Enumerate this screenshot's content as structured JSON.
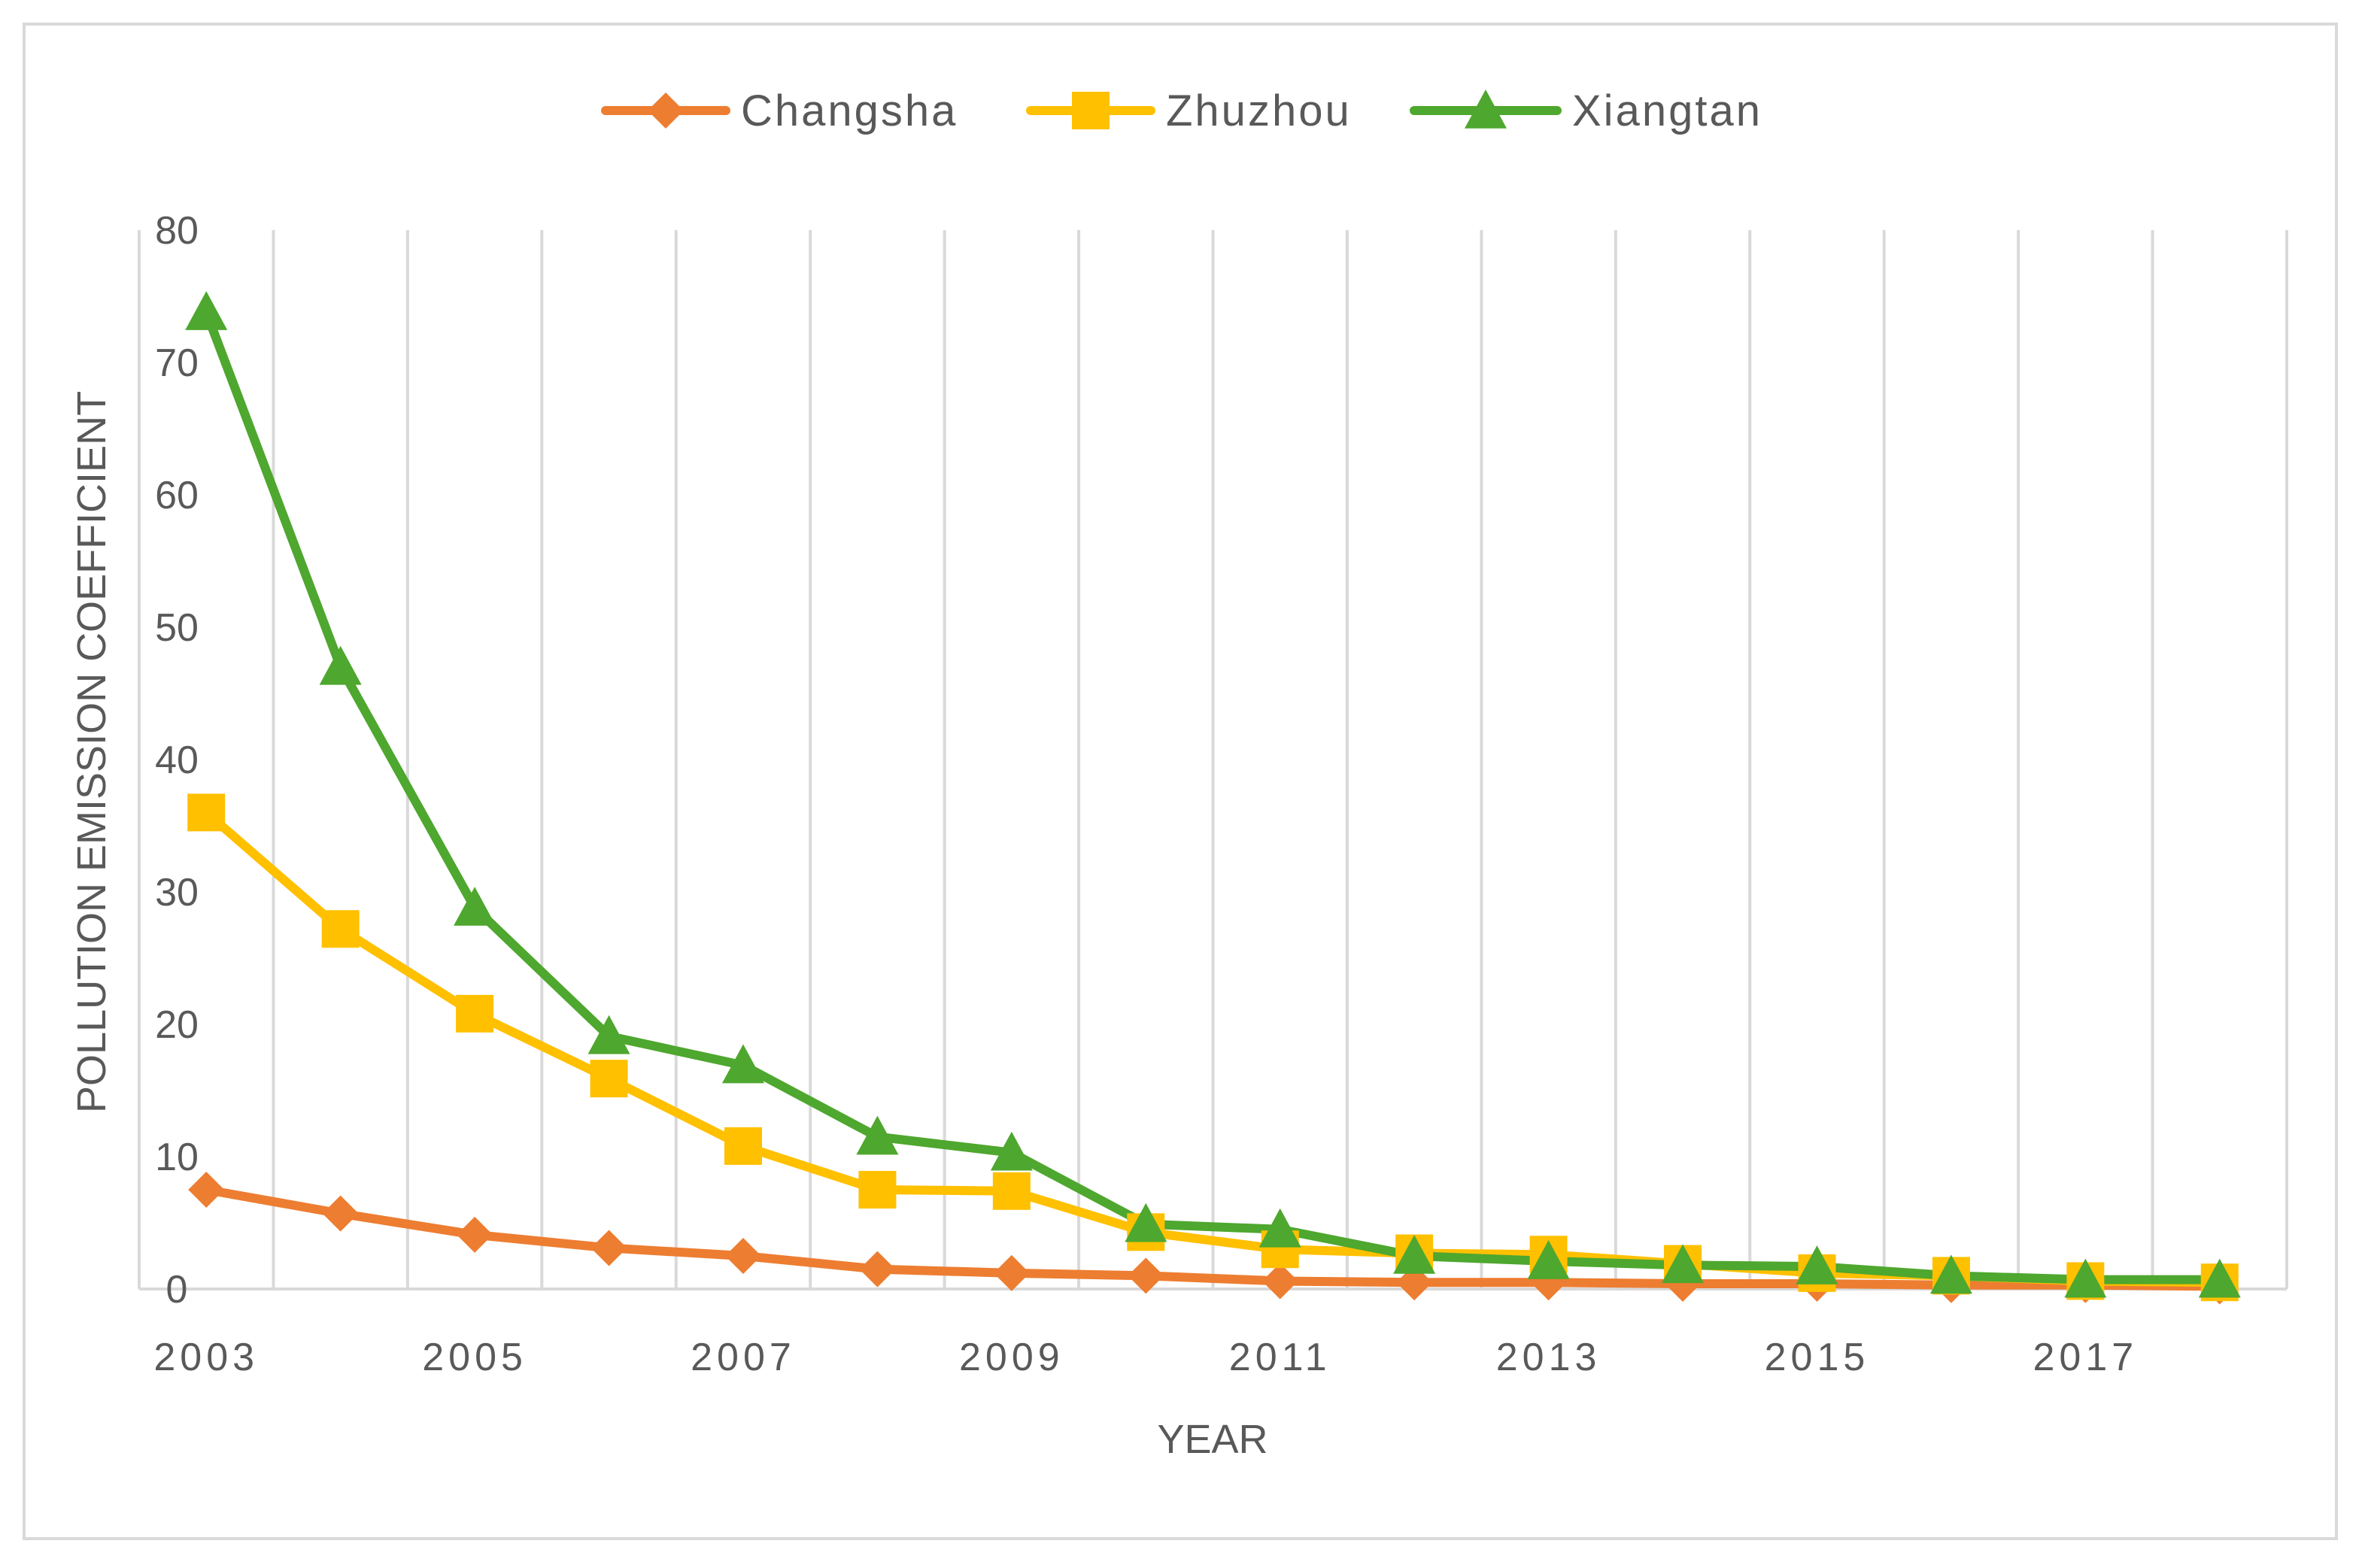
{
  "chart_data": {
    "type": "line",
    "x": [
      2003,
      2004,
      2005,
      2006,
      2007,
      2008,
      2009,
      2010,
      2011,
      2012,
      2013,
      2014,
      2015,
      2016,
      2017,
      2018
    ],
    "x_tick_labels": [
      "2003",
      "2005",
      "2007",
      "2009",
      "2011",
      "2013",
      "2015",
      "2017"
    ],
    "series": [
      {
        "name": "Changsha",
        "color": "#ED7D31",
        "marker": "diamond",
        "values": [
          7.5,
          5.7,
          4.1,
          3.1,
          2.5,
          1.5,
          1.2,
          1.0,
          0.6,
          0.5,
          0.5,
          0.4,
          0.4,
          0.3,
          0.3,
          0.2
        ]
      },
      {
        "name": "Zhuzhou",
        "color": "#FFC000",
        "marker": "square",
        "values": [
          36.0,
          27.2,
          20.8,
          15.9,
          10.8,
          7.5,
          7.4,
          4.3,
          3.0,
          2.7,
          2.6,
          1.9,
          1.2,
          1.0,
          0.6,
          0.5
        ]
      },
      {
        "name": "Xiangtan",
        "color": "#4EA72E",
        "marker": "triangle",
        "values": [
          73.8,
          47.0,
          28.8,
          19.1,
          16.9,
          11.5,
          10.3,
          4.9,
          4.5,
          2.5,
          2.1,
          1.8,
          1.7,
          1.0,
          0.7,
          0.7
        ]
      }
    ],
    "ylabel": "POLLUTION EMISSION  COEFFICIENT",
    "xlabel": "YEAR",
    "ylim": [
      0,
      80
    ],
    "y_ticks": [
      0,
      10,
      20,
      30,
      40,
      50,
      60,
      70,
      80
    ],
    "grid": "vertical",
    "legend_position": "top"
  }
}
